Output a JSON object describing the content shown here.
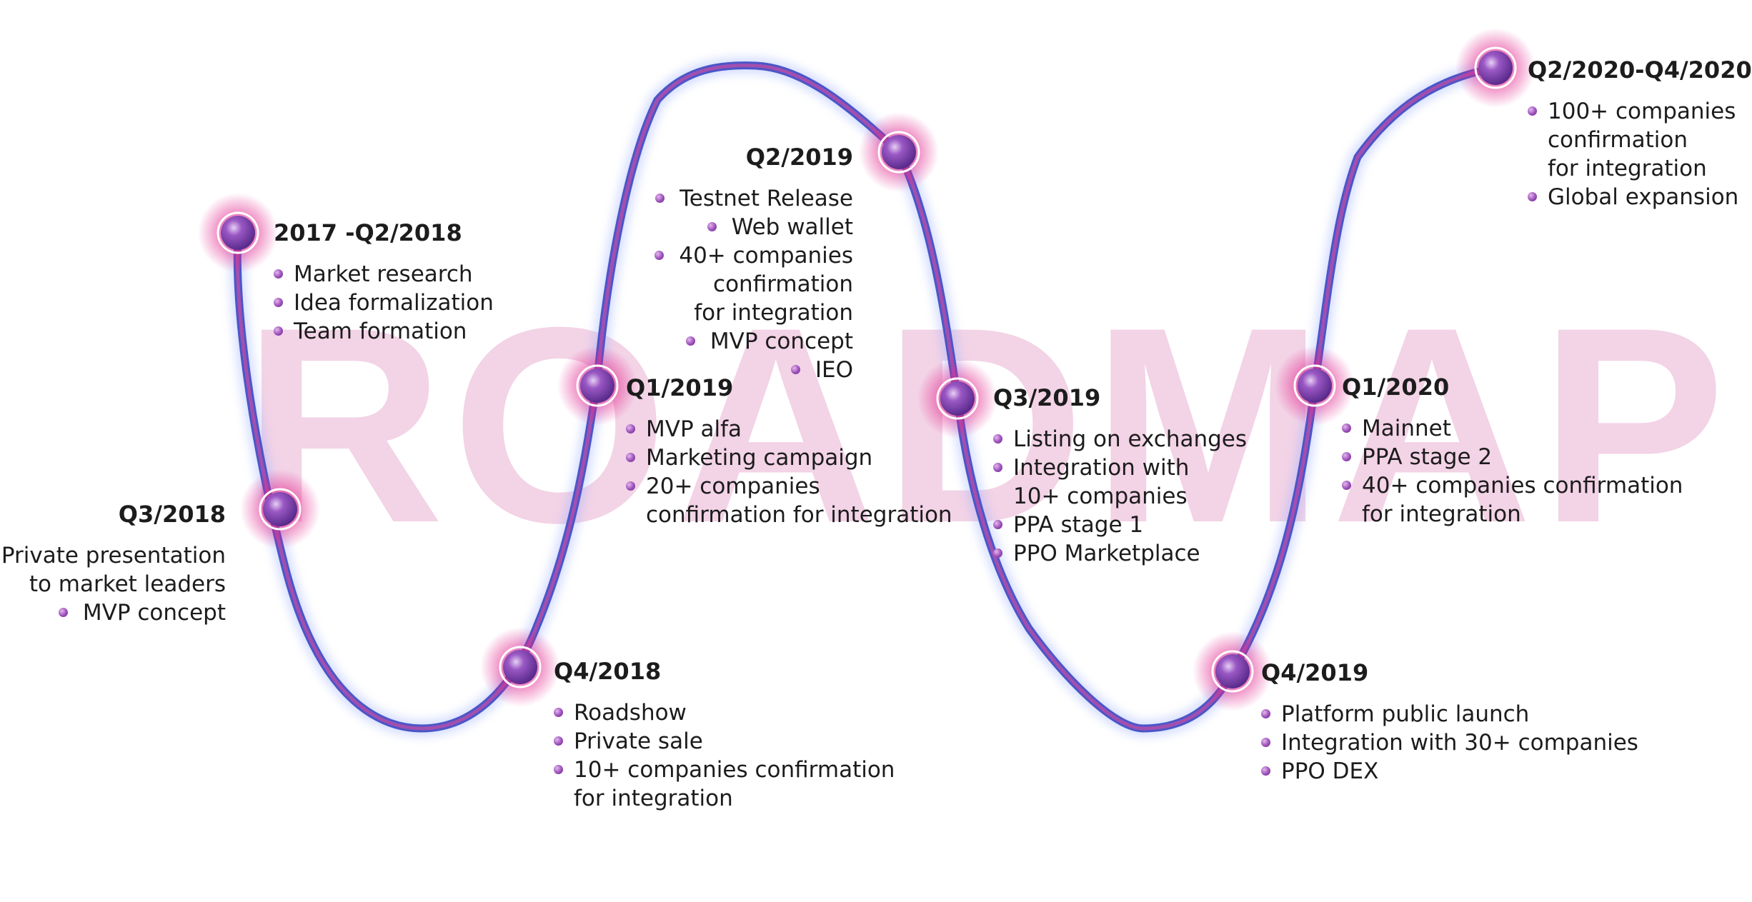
{
  "watermark": "ROADMAP",
  "colors": {
    "path_outer": "#4a56c8",
    "path_inner": "#a14fb0",
    "node_glow": "#e2258c",
    "node_core": "#8a3fb0",
    "watermark": "#f3d3e6"
  },
  "milestones": [
    {
      "title": "2017 -Q2/2018",
      "items": [
        {
          "text": "Market research",
          "bullet": true
        },
        {
          "text": "Idea formalization",
          "bullet": true
        },
        {
          "text": "Team formation",
          "bullet": true
        }
      ]
    },
    {
      "title": "Q3/2018",
      "items": [
        {
          "text": "Private presentation",
          "bullet": true
        },
        {
          "text": "to market leaders",
          "bullet": false
        },
        {
          "text": "MVP concept",
          "bullet": true
        }
      ]
    },
    {
      "title": "Q4/2018",
      "items": [
        {
          "text": "Roadshow",
          "bullet": true
        },
        {
          "text": "Private sale",
          "bullet": true
        },
        {
          "text": "10+ companies confirmation",
          "bullet": true
        },
        {
          "text": "for integration",
          "bullet": false
        }
      ]
    },
    {
      "title": "Q1/2019",
      "items": [
        {
          "text": "MVP alfa",
          "bullet": true
        },
        {
          "text": "Marketing campaign",
          "bullet": true
        },
        {
          "text": "20+ companies",
          "bullet": true
        },
        {
          "text": "confirmation for integration",
          "bullet": false
        }
      ]
    },
    {
      "title": "Q2/2019",
      "items": [
        {
          "text": "Testnet Release",
          "bullet": true
        },
        {
          "text": "Web wallet",
          "bullet": true
        },
        {
          "text": "40+ companies",
          "bullet": true
        },
        {
          "text": "confirmation",
          "bullet": false
        },
        {
          "text": "for integration",
          "bullet": false
        },
        {
          "text": "MVP concept",
          "bullet": true
        },
        {
          "text": "IEO",
          "bullet": true
        }
      ]
    },
    {
      "title": "Q3/2019",
      "items": [
        {
          "text": "Listing on exchanges",
          "bullet": true
        },
        {
          "text": "Integration with",
          "bullet": true
        },
        {
          "text": "10+ companies",
          "bullet": false
        },
        {
          "text": "PPA stage 1",
          "bullet": true
        },
        {
          "text": "PPO Marketplace",
          "bullet": true
        }
      ]
    },
    {
      "title": "Q4/2019",
      "items": [
        {
          "text": "Platform public launch",
          "bullet": true
        },
        {
          "text": "Integration with 30+ companies",
          "bullet": true
        },
        {
          "text": "PPO DEX",
          "bullet": true
        }
      ]
    },
    {
      "title": "Q1/2020",
      "items": [
        {
          "text": "Mainnet",
          "bullet": true
        },
        {
          "text": "PPA stage 2",
          "bullet": true
        },
        {
          "text": "40+ companies confirmation",
          "bullet": true
        },
        {
          "text": "for integration",
          "bullet": false
        }
      ]
    },
    {
      "title": "Q2/2020-Q4/2020",
      "items": [
        {
          "text": "100+ companies",
          "bullet": true
        },
        {
          "text": "confirmation",
          "bullet": false
        },
        {
          "text": "for integration",
          "bullet": false
        },
        {
          "text": "Global expansion",
          "bullet": true
        }
      ]
    }
  ]
}
